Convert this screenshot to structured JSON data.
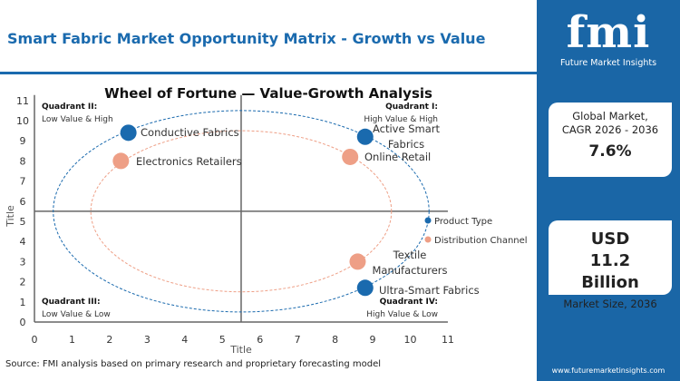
{
  "header": {
    "title": "Smart Fabric Market Opportunity Matrix - Growth vs Value"
  },
  "footer": {
    "source": "Source: FMI analysis based on primary research and proprietary forecasting model"
  },
  "sidebar": {
    "logo_text": "fmi",
    "logo_subtitle": "Future Market Insights",
    "cagr_label": "Global Market, CAGR 2026 - 2036",
    "cagr_value": "7.6%",
    "size_value": "USD 11.2 Billion",
    "size_label": "Market Size, 2036",
    "url": "www.futuremarketinsights.com"
  },
  "colors": {
    "product": "#1a6aae",
    "channel": "#ee9f86",
    "brand": "#1a66a6"
  },
  "chart_data": {
    "type": "scatter",
    "title": "Wheel of Fortune — Value-Growth  Analysis",
    "xlabel": "Title",
    "ylabel": "Title",
    "xlim": [
      0,
      11
    ],
    "ylim": [
      0,
      11
    ],
    "xticks": [
      0,
      1,
      2,
      3,
      4,
      5,
      6,
      7,
      8,
      9,
      10,
      11
    ],
    "yticks": [
      0,
      1,
      2,
      3,
      4,
      5,
      6,
      7,
      8,
      9,
      10,
      11
    ],
    "divider": {
      "x": 5.5,
      "y": 5.5
    },
    "quadrants": [
      {
        "title": "Quadrant II:",
        "subtitle": "Low Value & High"
      },
      {
        "title": "Quadrant I:",
        "subtitle": "High Value & High"
      },
      {
        "title": "Quadrant III:",
        "subtitle": "Low Value & Low"
      },
      {
        "title": "Quadrant IV:",
        "subtitle": "High Value & Low"
      }
    ],
    "legend_placement": "right",
    "series": [
      {
        "name": "Product Type",
        "color": "#1a6aae",
        "ellipse": {
          "cx": 5.5,
          "cy": 5.5,
          "rx": 5,
          "ry": 5
        },
        "points": [
          {
            "label": "Conductive Fabrics",
            "x": 2.5,
            "y": 9.4
          },
          {
            "label": "Active Smart Fabrics",
            "x": 8.8,
            "y": 9.2
          },
          {
            "label": "Ultra-Smart Fabrics",
            "x": 8.8,
            "y": 1.7
          }
        ]
      },
      {
        "name": "Distribution Channel",
        "color": "#ee9f86",
        "ellipse": {
          "cx": 5.5,
          "cy": 5.5,
          "rx": 4,
          "ry": 4
        },
        "points": [
          {
            "label": "Electronics Retailers",
            "x": 2.3,
            "y": 8.0
          },
          {
            "label": "Online Retail",
            "x": 8.4,
            "y": 8.2
          },
          {
            "label": "Textile Manufacturers",
            "x": 8.6,
            "y": 3.0
          }
        ]
      }
    ]
  }
}
